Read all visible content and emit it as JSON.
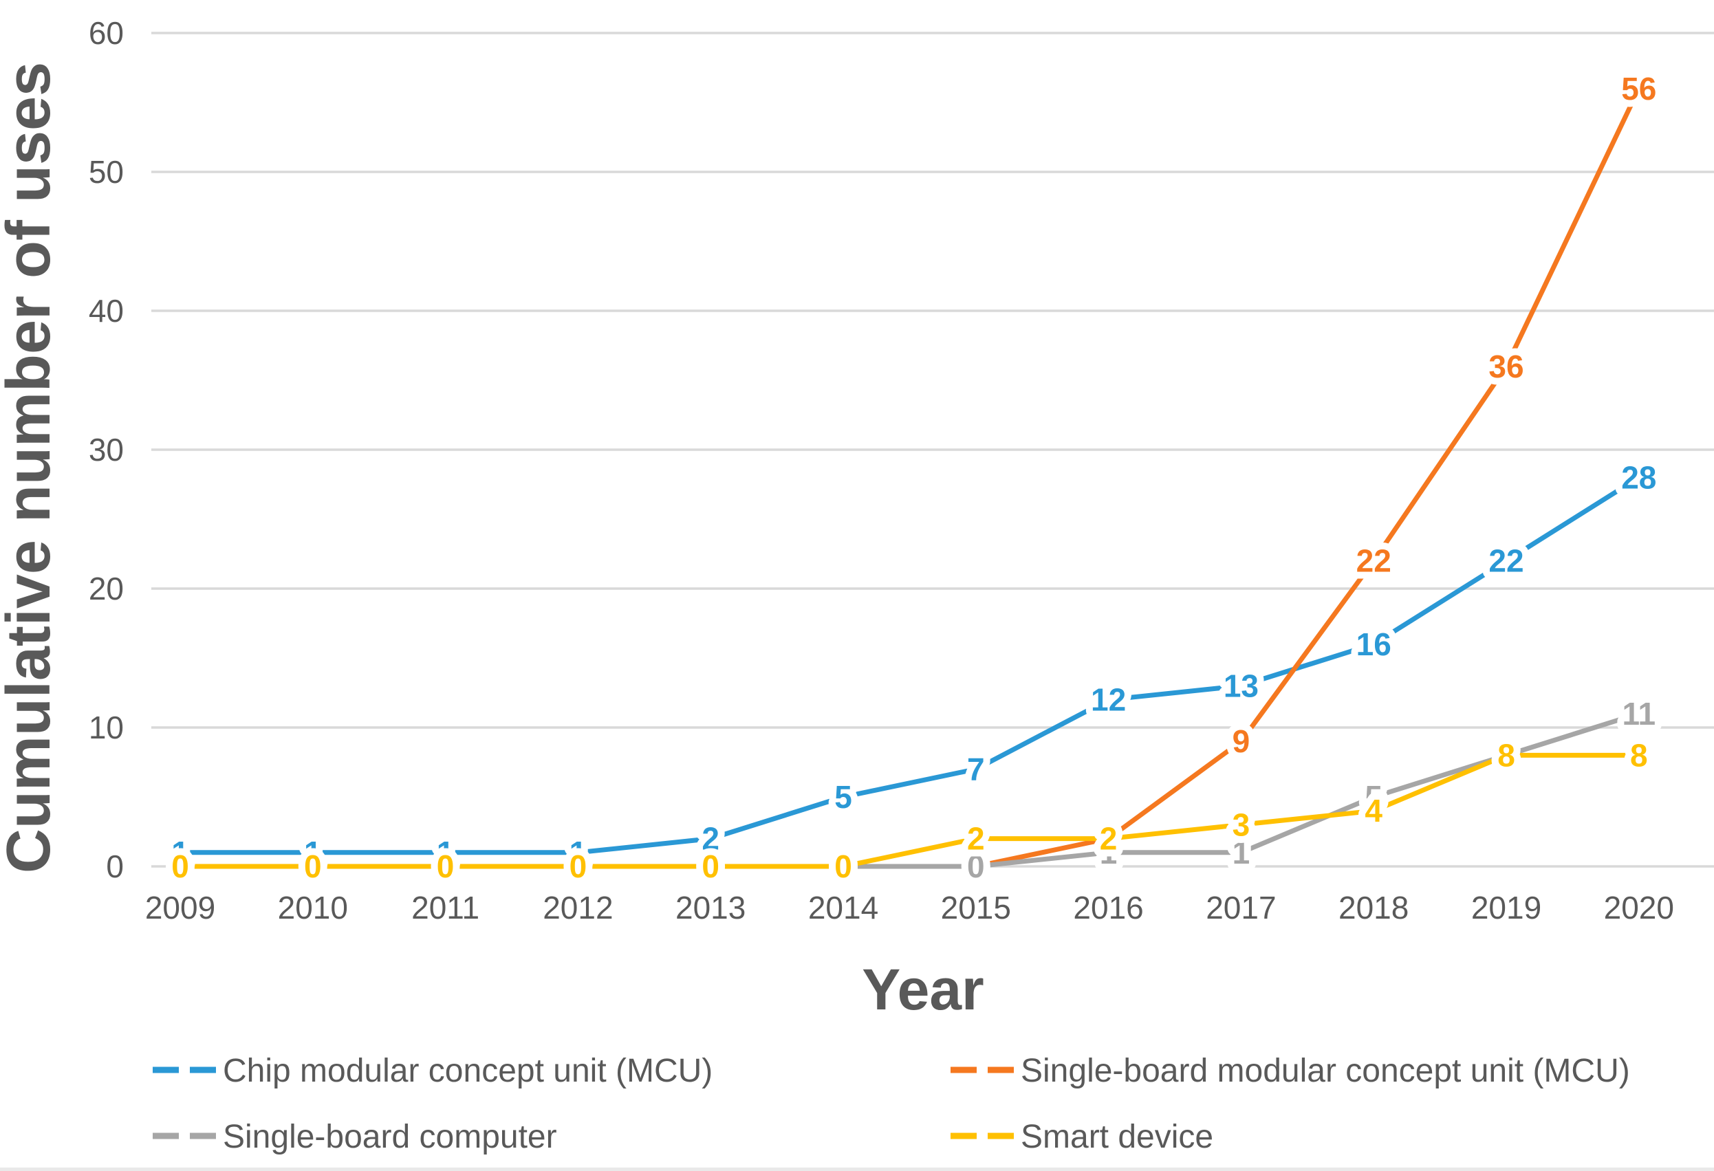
{
  "chart_data": {
    "type": "line",
    "title": "",
    "xlabel": "Year",
    "ylabel": "Cumulative number of uses",
    "x": [
      "2009",
      "2010",
      "2011",
      "2012",
      "2013",
      "2014",
      "2015",
      "2016",
      "2017",
      "2018",
      "2019",
      "2020"
    ],
    "yticks": [
      0,
      10,
      20,
      30,
      40,
      50,
      60
    ],
    "ylim": [
      0,
      60
    ],
    "grid": true,
    "legend_position": "bottom-two-columns",
    "series": [
      {
        "name": "Chip modular concept unit (MCU)",
        "color": "#2A98D5",
        "values": [
          1,
          1,
          1,
          1,
          2,
          5,
          7,
          12,
          13,
          16,
          22,
          28
        ]
      },
      {
        "name": "Single-board modular concept unit (MCU)",
        "color": "#F5781F",
        "values": [
          null,
          null,
          null,
          null,
          null,
          null,
          0,
          2,
          9,
          22,
          36,
          56
        ]
      },
      {
        "name": "Single-board computer",
        "color": "#A6A6A6",
        "values": [
          null,
          null,
          null,
          null,
          null,
          0,
          0,
          1,
          1,
          5,
          8,
          11
        ]
      },
      {
        "name": "Smart device",
        "color": "#FFC000",
        "values": [
          0,
          0,
          0,
          0,
          0,
          0,
          2,
          2,
          3,
          4,
          8,
          8
        ]
      }
    ],
    "colors": {
      "gridline": "#D9D9D9",
      "axis_text": "#595959",
      "title_text": "#595959",
      "background": "#FFFFFF"
    }
  }
}
